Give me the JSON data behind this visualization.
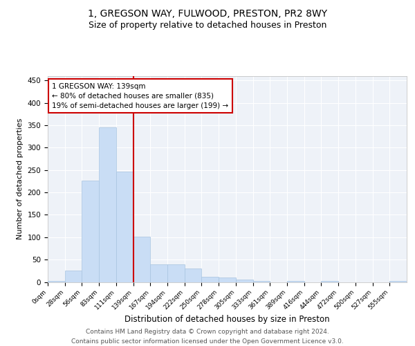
{
  "title1": "1, GREGSON WAY, FULWOOD, PRESTON, PR2 8WY",
  "title2": "Size of property relative to detached houses in Preston",
  "xlabel": "Distribution of detached houses by size in Preston",
  "ylabel": "Number of detached properties",
  "bar_color": "#c9ddf5",
  "bar_edge_color": "#a8c4e0",
  "background_color": "#eef2f8",
  "grid_color": "#ffffff",
  "vline_color": "#cc0000",
  "annotation_text": "1 GREGSON WAY: 139sqm\n← 80% of detached houses are smaller (835)\n19% of semi-detached houses are larger (199) →",
  "categories": [
    "0sqm",
    "28sqm",
    "56sqm",
    "83sqm",
    "111sqm",
    "139sqm",
    "167sqm",
    "194sqm",
    "222sqm",
    "250sqm",
    "278sqm",
    "305sqm",
    "333sqm",
    "361sqm",
    "389sqm",
    "416sqm",
    "444sqm",
    "472sqm",
    "500sqm",
    "527sqm",
    "555sqm"
  ],
  "bar_heights": [
    2,
    25,
    227,
    346,
    247,
    101,
    40,
    40,
    30,
    12,
    10,
    5,
    2,
    0,
    3,
    0,
    3,
    0,
    0,
    0,
    2
  ],
  "ylim": [
    0,
    460
  ],
  "yticks": [
    0,
    50,
    100,
    150,
    200,
    250,
    300,
    350,
    400,
    450
  ],
  "footer1": "Contains HM Land Registry data © Crown copyright and database right 2024.",
  "footer2": "Contains public sector information licensed under the Open Government Licence v3.0.",
  "title1_fontsize": 10,
  "title2_fontsize": 9,
  "annotation_fontsize": 7.5,
  "ylabel_fontsize": 8,
  "xlabel_fontsize": 8.5,
  "tick_fontsize": 6.5,
  "ytick_fontsize": 7.5,
  "footer_fontsize": 6.5
}
